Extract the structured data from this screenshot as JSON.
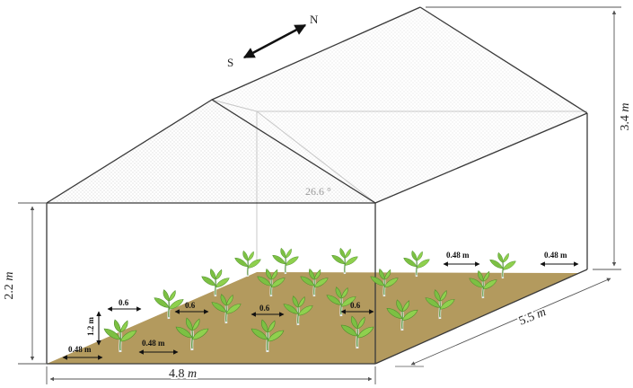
{
  "orientation": {
    "south": "S",
    "north": "N"
  },
  "dimensions": {
    "wall_height": {
      "value": "2.2",
      "unit": "m"
    },
    "total_height": {
      "value": "3.4",
      "unit": "m"
    },
    "width": {
      "value": "4.8",
      "unit": "m"
    },
    "length": {
      "value": "5.5",
      "unit": "m"
    },
    "roof_angle": "26.6 °"
  },
  "plant_spacing": {
    "row_gap_a": "0.6",
    "row_gap_b": "0.6",
    "row_gap_c": "0.6",
    "row_gap_d": "0.6",
    "plant_height": "1.2 m",
    "edge_gap_a": "0.48 m",
    "edge_gap_b": "0.48 m",
    "edge_gap_c": "0.48 m",
    "edge_gap_d": "0.48 m"
  },
  "colors": {
    "soil": "#b39a5e",
    "leaf": "#7cc043",
    "leaf_dark": "#4e8f2c",
    "frame": "#3a3a3a"
  }
}
